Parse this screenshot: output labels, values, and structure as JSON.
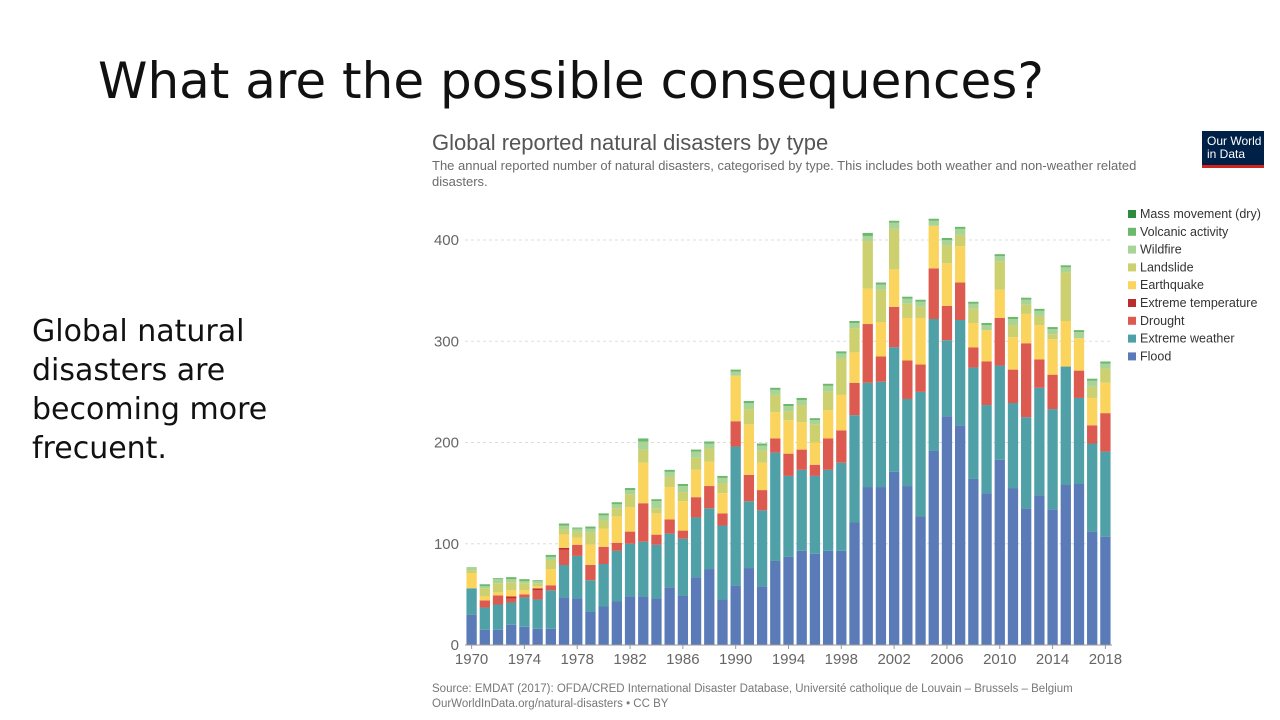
{
  "slide": {
    "title": "What are the possible consequences?",
    "side_text": "Global natural disasters are becoming more frecuent."
  },
  "logo": {
    "line1": "Our World",
    "line2": "in Data"
  },
  "source": {
    "line1": "Source: EMDAT (2017): OFDA/CRED International Disaster Database, Université catholique de Louvain – Brussels – Belgium",
    "line2": "OurWorldInData.org/natural-disasters • CC BY"
  },
  "chart_data": {
    "type": "bar",
    "stacked": true,
    "title": "Global reported natural disasters by type",
    "subtitle": "The annual reported number of natural disasters, categorised by type. This includes both weather and non-weather related disasters.",
    "xlabel": "",
    "ylabel": "",
    "ylim": [
      0,
      430
    ],
    "yticks": [
      0,
      100,
      200,
      300,
      400
    ],
    "xticks": [
      "1970",
      "1974",
      "1978",
      "1982",
      "1986",
      "1990",
      "1994",
      "1998",
      "2002",
      "2006",
      "2010",
      "2014",
      "2018"
    ],
    "legend_position": "right",
    "categories": [
      "1970",
      "1971",
      "1972",
      "1973",
      "1974",
      "1975",
      "1976",
      "1977",
      "1978",
      "1979",
      "1980",
      "1981",
      "1982",
      "1983",
      "1984",
      "1985",
      "1986",
      "1987",
      "1988",
      "1989",
      "1990",
      "1991",
      "1992",
      "1993",
      "1994",
      "1995",
      "1996",
      "1997",
      "1998",
      "1999",
      "2000",
      "2001",
      "2002",
      "2003",
      "2004",
      "2005",
      "2006",
      "2007",
      "2008",
      "2009",
      "2010",
      "2011",
      "2012",
      "2013",
      "2014",
      "2015",
      "2016",
      "2017",
      "2018"
    ],
    "series": [
      {
        "name": "Flood",
        "color": "#5a7ab8",
        "values": [
          30,
          15,
          15,
          20,
          18,
          16,
          16,
          47,
          46,
          33,
          38,
          43,
          48,
          48,
          46,
          57,
          49,
          67,
          75,
          45,
          59,
          76,
          58,
          83,
          87,
          93,
          90,
          93,
          93,
          121,
          156,
          156,
          171,
          157,
          127,
          192,
          226,
          217,
          164,
          150,
          183,
          155,
          135,
          148,
          134,
          158,
          159,
          112,
          107
        ]
      },
      {
        "name": "Extreme weather",
        "color": "#4fa1a7",
        "values": [
          26,
          22,
          25,
          22,
          29,
          29,
          38,
          32,
          42,
          31,
          42,
          50,
          52,
          54,
          53,
          53,
          56,
          59,
          60,
          73,
          137,
          66,
          75,
          107,
          80,
          80,
          77,
          80,
          87,
          106,
          103,
          104,
          123,
          86,
          123,
          130,
          75,
          104,
          110,
          87,
          93,
          84,
          90,
          106,
          99,
          117,
          85,
          87,
          84
        ]
      },
      {
        "name": "Drought",
        "color": "#dc5a4f",
        "values": [
          0,
          7,
          9,
          4,
          3,
          9,
          5,
          15,
          11,
          15,
          17,
          8,
          12,
          38,
          10,
          14,
          8,
          20,
          22,
          12,
          25,
          26,
          20,
          14,
          22,
          20,
          11,
          31,
          32,
          32,
          58,
          25,
          40,
          38,
          27,
          50,
          34,
          37,
          20,
          43,
          47,
          33,
          73,
          28,
          34,
          0,
          27,
          18,
          38
        ]
      },
      {
        "name": "Extreme temperature",
        "color": "#bc2d2d",
        "values": [
          0,
          0,
          0,
          2,
          0,
          2,
          0,
          2,
          0,
          0,
          0,
          0,
          0,
          0,
          0,
          0,
          0,
          0,
          0,
          0,
          0,
          0,
          0,
          0,
          0,
          0,
          0,
          0,
          0,
          0,
          0,
          0,
          0,
          0,
          0,
          0,
          0,
          0,
          0,
          0,
          0,
          0,
          0,
          0,
          0,
          0,
          0,
          0,
          0
        ]
      },
      {
        "name": "Earthquake",
        "color": "#fbd45e",
        "values": [
          15,
          4,
          3,
          6,
          4,
          2,
          16,
          13,
          7,
          20,
          18,
          26,
          24,
          40,
          21,
          32,
          29,
          27,
          24,
          20,
          45,
          50,
          27,
          26,
          33,
          27,
          22,
          28,
          35,
          30,
          35,
          34,
          37,
          42,
          46,
          42,
          42,
          36,
          24,
          31,
          28,
          32,
          29,
          34,
          35,
          45,
          32,
          27,
          30
        ]
      },
      {
        "name": "Landslide",
        "color": "#ccd06e",
        "values": [
          3,
          8,
          9,
          8,
          7,
          3,
          9,
          5,
          6,
          12,
          8,
          8,
          13,
          13,
          5,
          10,
          9,
          12,
          13,
          10,
          0,
          15,
          12,
          17,
          9,
          17,
          18,
          18,
          36,
          24,
          47,
          32,
          40,
          14,
          11,
          0,
          18,
          11,
          14,
          0,
          28,
          12,
          9,
          9,
          5,
          48,
          0,
          11,
          14
        ]
      },
      {
        "name": "Wildfire",
        "color": "#a8d498",
        "values": [
          3,
          2,
          4,
          3,
          2,
          2,
          3,
          4,
          3,
          4,
          5,
          4,
          4,
          8,
          7,
          5,
          6,
          6,
          5,
          5,
          4,
          6,
          5,
          5,
          5,
          5,
          4,
          6,
          5,
          5,
          5,
          5,
          6,
          5,
          5,
          5,
          5,
          6,
          5,
          5,
          5,
          6,
          5,
          5,
          5,
          5,
          6,
          6,
          5
        ]
      },
      {
        "name": "Volcanic activity",
        "color": "#6cb86c",
        "values": [
          0,
          2,
          1,
          2,
          2,
          1,
          2,
          2,
          1,
          2,
          2,
          2,
          2,
          3,
          2,
          2,
          2,
          2,
          2,
          2,
          2,
          2,
          2,
          2,
          2,
          2,
          2,
          2,
          2,
          2,
          3,
          2,
          2,
          2,
          2,
          2,
          2,
          2,
          2,
          2,
          2,
          2,
          2,
          2,
          2,
          2,
          2,
          2,
          2
        ]
      },
      {
        "name": "Mass movement (dry)",
        "color": "#2e8a3e",
        "values": [
          0,
          0,
          0,
          0,
          0,
          0,
          0,
          0,
          0,
          0,
          0,
          0,
          0,
          0,
          0,
          0,
          0,
          0,
          0,
          0,
          0,
          0,
          0,
          0,
          0,
          0,
          0,
          0,
          0,
          0,
          0,
          0,
          0,
          0,
          0,
          0,
          0,
          0,
          0,
          0,
          0,
          0,
          0,
          0,
          0,
          0,
          0,
          0,
          0
        ]
      }
    ]
  }
}
